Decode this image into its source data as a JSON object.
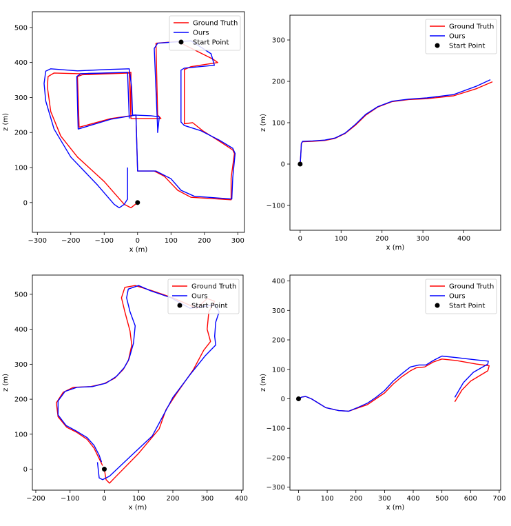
{
  "colors": {
    "ground_truth": "#ff0000",
    "ours": "#0000ff",
    "start_point": "#000000"
  },
  "chart_data": [
    {
      "type": "line",
      "xlabel": "x (m)",
      "ylabel": "z (m)",
      "xlim": [
        -315,
        320
      ],
      "ylim": [
        -85,
        545
      ],
      "xticks": [
        -300,
        -200,
        -100,
        0,
        100,
        200,
        300
      ],
      "yticks": [
        0,
        100,
        200,
        300,
        400,
        500
      ],
      "legend_position": "top-right",
      "legend": [
        "Ground Truth",
        "Ours",
        "Start Point"
      ],
      "start_point": [
        0,
        0
      ],
      "series": [
        {
          "name": "Ground Truth",
          "points": [
            [
              0,
              0
            ],
            [
              -20,
              -15
            ],
            [
              -40,
              -5
            ],
            [
              -100,
              60
            ],
            [
              -180,
              130
            ],
            [
              -230,
              190
            ],
            [
              -260,
              260
            ],
            [
              -270,
              330
            ],
            [
              -268,
              360
            ],
            [
              -250,
              370
            ],
            [
              -175,
              368
            ],
            [
              -80,
              370
            ],
            [
              -20,
              372
            ],
            [
              -20,
              240
            ],
            [
              70,
              240
            ],
            [
              60,
              250
            ],
            [
              55,
              455
            ],
            [
              120,
              460
            ],
            [
              225,
              410
            ],
            [
              240,
              400
            ],
            [
              160,
              388
            ],
            [
              140,
              380
            ],
            [
              140,
              225
            ],
            [
              165,
              228
            ],
            [
              195,
              205
            ],
            [
              245,
              175
            ],
            [
              285,
              150
            ],
            [
              290,
              140
            ],
            [
              280,
              70
            ],
            [
              280,
              8
            ],
            [
              160,
              15
            ],
            [
              120,
              35
            ],
            [
              80,
              75
            ],
            [
              50,
              90
            ],
            [
              0,
              90
            ],
            [
              -5,
              250
            ],
            [
              -80,
              240
            ],
            [
              -175,
              215
            ],
            [
              -180,
              360
            ],
            [
              -165,
              365
            ],
            [
              -25,
              370
            ],
            [
              -20,
              240
            ]
          ]
        },
        {
          "name": "Ours",
          "points": [
            [
              -30,
              100
            ],
            [
              -30,
              10
            ],
            [
              -40,
              -5
            ],
            [
              -55,
              -15
            ],
            [
              -70,
              -5
            ],
            [
              -120,
              50
            ],
            [
              -200,
              130
            ],
            [
              -250,
              210
            ],
            [
              -275,
              290
            ],
            [
              -280,
              340
            ],
            [
              -275,
              375
            ],
            [
              -260,
              382
            ],
            [
              -180,
              376
            ],
            [
              -90,
              380
            ],
            [
              -25,
              382
            ],
            [
              -18,
              330
            ],
            [
              -15,
              250
            ],
            [
              40,
              248
            ],
            [
              65,
              245
            ],
            [
              60,
              200
            ],
            [
              60,
              210
            ],
            [
              50,
              440
            ],
            [
              60,
              455
            ],
            [
              160,
              462
            ],
            [
              220,
              425
            ],
            [
              230,
              392
            ],
            [
              140,
              384
            ],
            [
              130,
              378
            ],
            [
              130,
              230
            ],
            [
              140,
              220
            ],
            [
              190,
              205
            ],
            [
              245,
              178
            ],
            [
              285,
              155
            ],
            [
              292,
              140
            ],
            [
              285,
              72
            ],
            [
              282,
              10
            ],
            [
              170,
              18
            ],
            [
              130,
              35
            ],
            [
              100,
              68
            ],
            [
              55,
              90
            ],
            [
              0,
              90
            ],
            [
              -5,
              250
            ],
            [
              -80,
              238
            ],
            [
              -178,
              210
            ],
            [
              -182,
              360
            ],
            [
              -170,
              368
            ],
            [
              -30,
              372
            ],
            [
              -25,
              240
            ]
          ]
        }
      ]
    },
    {
      "type": "line",
      "xlabel": "x (m)",
      "ylabel": "z (m)",
      "xlim": [
        -25,
        490
      ],
      "ylim": [
        -160,
        360
      ],
      "xticks": [
        0,
        100,
        200,
        300,
        400
      ],
      "yticks": [
        -100,
        0,
        100,
        200,
        300
      ],
      "legend_position": "top-right",
      "legend": [
        "Ground Truth",
        "Ours",
        "Start Point"
      ],
      "start_point": [
        0,
        0
      ],
      "series": [
        {
          "name": "Ground Truth",
          "points": [
            [
              0,
              0
            ],
            [
              2,
              30
            ],
            [
              3,
              50
            ],
            [
              6,
              54
            ],
            [
              30,
              55
            ],
            [
              60,
              57
            ],
            [
              85,
              62
            ],
            [
              110,
              74
            ],
            [
              135,
              94
            ],
            [
              160,
              118
            ],
            [
              190,
              138
            ],
            [
              225,
              151
            ],
            [
              265,
              156
            ],
            [
              310,
              158
            ],
            [
              375,
              165
            ],
            [
              430,
              182
            ],
            [
              470,
              199
            ]
          ]
        },
        {
          "name": "Ours",
          "points": [
            [
              0,
              0
            ],
            [
              2,
              30
            ],
            [
              3,
              50
            ],
            [
              6,
              55
            ],
            [
              30,
              56
            ],
            [
              60,
              58
            ],
            [
              85,
              63
            ],
            [
              110,
              75
            ],
            [
              135,
              96
            ],
            [
              160,
              120
            ],
            [
              190,
              139
            ],
            [
              225,
              152
            ],
            [
              265,
              157
            ],
            [
              310,
              160
            ],
            [
              375,
              168
            ],
            [
              430,
              188
            ],
            [
              465,
              204
            ]
          ]
        }
      ]
    },
    {
      "type": "line",
      "xlabel": "x (m)",
      "ylabel": "z (m)",
      "xlim": [
        -210,
        405
      ],
      "ylim": [
        -60,
        555
      ],
      "xticks": [
        -200,
        -100,
        0,
        100,
        200,
        300,
        400
      ],
      "yticks": [
        0,
        100,
        200,
        300,
        400,
        500
      ],
      "legend_position": "top-right",
      "legend": [
        "Ground Truth",
        "Ours",
        "Start Point"
      ],
      "start_point": [
        0,
        0
      ],
      "series": [
        {
          "name": "Ground Truth",
          "points": [
            [
              0,
              0
            ],
            [
              5,
              -30
            ],
            [
              15,
              -40
            ],
            [
              30,
              -25
            ],
            [
              100,
              45
            ],
            [
              160,
              115
            ],
            [
              180,
              170
            ],
            [
              210,
              215
            ],
            [
              260,
              285
            ],
            [
              290,
              340
            ],
            [
              310,
              365
            ],
            [
              300,
              400
            ],
            [
              305,
              450
            ],
            [
              322,
              480
            ],
            [
              300,
              488
            ],
            [
              270,
              460
            ],
            [
              200,
              490
            ],
            [
              140,
              510
            ],
            [
              90,
              525
            ],
            [
              60,
              520
            ],
            [
              50,
              490
            ],
            [
              60,
              450
            ],
            [
              75,
              395
            ],
            [
              80,
              355
            ],
            [
              70,
              310
            ],
            [
              55,
              285
            ],
            [
              30,
              260
            ],
            [
              0,
              245
            ],
            [
              -40,
              236
            ],
            [
              -90,
              234
            ],
            [
              -120,
              220
            ],
            [
              -140,
              190
            ],
            [
              -135,
              150
            ],
            [
              -110,
              120
            ],
            [
              -80,
              105
            ],
            [
              -50,
              85
            ],
            [
              -30,
              60
            ],
            [
              -15,
              30
            ],
            [
              -5,
              10
            ]
          ]
        },
        {
          "name": "Ours",
          "points": [
            [
              -20,
              20
            ],
            [
              -15,
              -25
            ],
            [
              -5,
              -30
            ],
            [
              15,
              -20
            ],
            [
              80,
              40
            ],
            [
              140,
              95
            ],
            [
              170,
              150
            ],
            [
              200,
              205
            ],
            [
              250,
              270
            ],
            [
              295,
              325
            ],
            [
              325,
              355
            ],
            [
              322,
              380
            ],
            [
              325,
              420
            ],
            [
              335,
              450
            ],
            [
              322,
              470
            ],
            [
              290,
              465
            ],
            [
              250,
              460
            ],
            [
              195,
              490
            ],
            [
              135,
              510
            ],
            [
              100,
              525
            ],
            [
              70,
              515
            ],
            [
              65,
              490
            ],
            [
              75,
              450
            ],
            [
              90,
              410
            ],
            [
              85,
              360
            ],
            [
              72,
              315
            ],
            [
              58,
              290
            ],
            [
              35,
              265
            ],
            [
              5,
              246
            ],
            [
              -35,
              236
            ],
            [
              -80,
              234
            ],
            [
              -115,
              222
            ],
            [
              -135,
              195
            ],
            [
              -135,
              155
            ],
            [
              -112,
              125
            ],
            [
              -80,
              108
            ],
            [
              -50,
              90
            ],
            [
              -30,
              68
            ],
            [
              -15,
              40
            ],
            [
              -8,
              20
            ]
          ]
        }
      ]
    },
    {
      "type": "line",
      "xlabel": "x (m)",
      "ylabel": "z (m)",
      "xlim": [
        -30,
        705
      ],
      "ylim": [
        -310,
        420
      ],
      "xticks": [
        0,
        100,
        200,
        300,
        400,
        500,
        600,
        700
      ],
      "yticks": [
        -300,
        -200,
        -100,
        0,
        100,
        200,
        300,
        400
      ],
      "legend_position": "top-right",
      "legend": [
        "Ground Truth",
        "Ours",
        "Start Point"
      ],
      "start_point": [
        0,
        0
      ],
      "series": [
        {
          "name": "Ground Truth",
          "points": [
            [
              0,
              0
            ],
            [
              12,
              6
            ],
            [
              25,
              8
            ],
            [
              45,
              0
            ],
            [
              70,
              -15
            ],
            [
              95,
              -30
            ],
            [
              140,
              -40
            ],
            [
              175,
              -42
            ],
            [
              210,
              -30
            ],
            [
              240,
              -20
            ],
            [
              270,
              0
            ],
            [
              300,
              20
            ],
            [
              330,
              50
            ],
            [
              360,
              75
            ],
            [
              390,
              95
            ],
            [
              410,
              105
            ],
            [
              440,
              108
            ],
            [
              470,
              125
            ],
            [
              500,
              135
            ],
            [
              550,
              130
            ],
            [
              620,
              118
            ],
            [
              665,
              112
            ],
            [
              660,
              95
            ],
            [
              600,
              60
            ],
            [
              570,
              30
            ],
            [
              545,
              -10
            ]
          ]
        },
        {
          "name": "Ours",
          "points": [
            [
              0,
              0
            ],
            [
              12,
              6
            ],
            [
              25,
              8
            ],
            [
              45,
              0
            ],
            [
              70,
              -15
            ],
            [
              95,
              -30
            ],
            [
              140,
              -40
            ],
            [
              175,
              -42
            ],
            [
              210,
              -28
            ],
            [
              240,
              -15
            ],
            [
              270,
              5
            ],
            [
              300,
              28
            ],
            [
              330,
              60
            ],
            [
              360,
              85
            ],
            [
              390,
              108
            ],
            [
              420,
              115
            ],
            [
              445,
              115
            ],
            [
              470,
              130
            ],
            [
              500,
              145
            ],
            [
              550,
              140
            ],
            [
              620,
              132
            ],
            [
              662,
              128
            ],
            [
              660,
              118
            ],
            [
              610,
              90
            ],
            [
              575,
              55
            ],
            [
              545,
              5
            ]
          ]
        }
      ]
    }
  ]
}
